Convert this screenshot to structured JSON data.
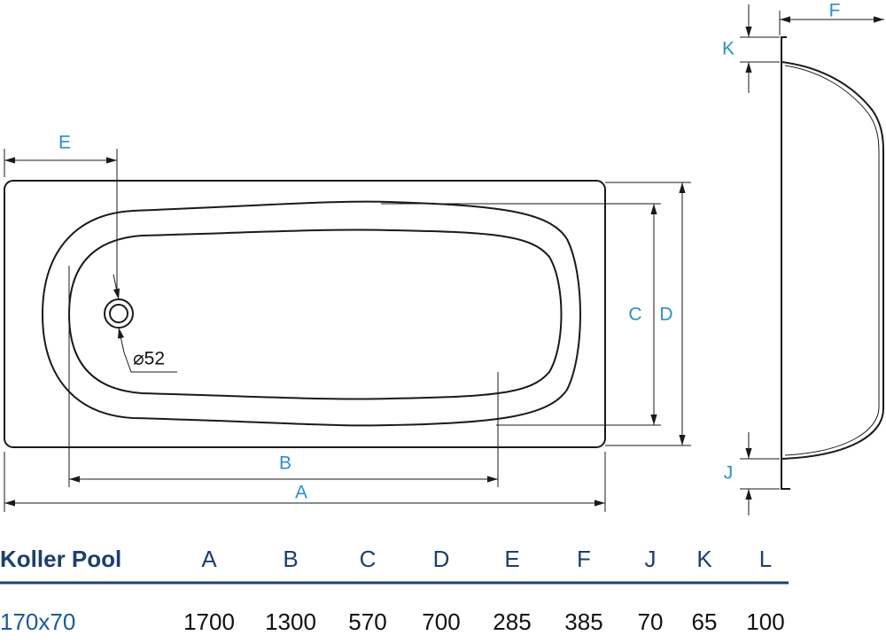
{
  "drawing": {
    "labels": {
      "E": "E",
      "B": "B",
      "A": "A",
      "C": "C",
      "D": "D",
      "F": "F",
      "K": "K",
      "J": "J",
      "drain": "⌀52"
    }
  },
  "table": {
    "header": [
      "Koller Pool",
      "A",
      "B",
      "C",
      "D",
      "E",
      "F",
      "J",
      "K",
      "L"
    ],
    "rows": [
      [
        "170x70",
        1700,
        1300,
        570,
        700,
        285,
        385,
        70,
        65,
        100
      ]
    ]
  }
}
